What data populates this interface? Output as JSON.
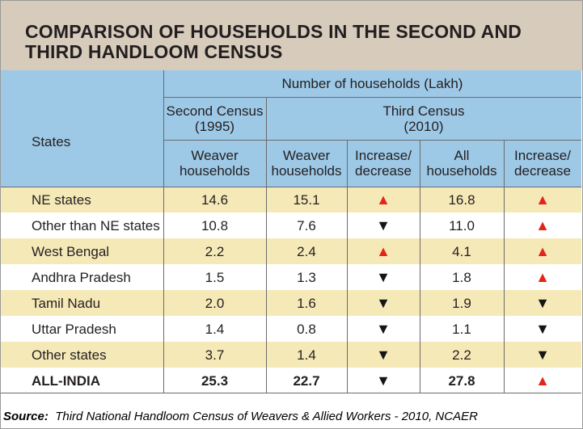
{
  "title_line1": "COMPARISON OF HOUSEHOLDS IN THE SECOND AND",
  "title_line2": "THIRD HANDLOOM CENSUS",
  "header": {
    "group": "Number of households (Lakh)",
    "second_census": "Second Census\n(1995)",
    "third_census": "Third Census\n(2010)",
    "states": "States",
    "col_weaver_1995": "Weaver\nhouseholds",
    "col_weaver_2010": "Weaver\nhouseholds",
    "col_incdec_1": "Increase/\ndecrease",
    "col_all_2010": "All\nhouseholds",
    "col_incdec_2": "Increase/\ndecrease"
  },
  "colors": {
    "header_blue": "#9dc8e6",
    "row_yellow": "#f6e9b8",
    "increase_red": "#e32619",
    "decrease_black": "#151515"
  },
  "chart_data": {
    "type": "table",
    "title": "COMPARISON OF HOUSEHOLDS IN THE SECOND AND THIRD HANDLOOM CENSUS",
    "columns": [
      "States",
      "Second Census (1995) Weaver households",
      "Third Census (2010) Weaver households",
      "Increase/decrease",
      "Third Census (2010) All households",
      "Increase/decrease"
    ],
    "rows": [
      {
        "state": "NE states",
        "weaver_1995": "14.6",
        "weaver_2010": "15.1",
        "change_weaver": "increase",
        "all_2010": "16.8",
        "change_all": "increase",
        "bold": false
      },
      {
        "state": "Other than NE states",
        "weaver_1995": "10.8",
        "weaver_2010": "7.6",
        "change_weaver": "decrease",
        "all_2010": "11.0",
        "change_all": "increase",
        "bold": false
      },
      {
        "state": "West Bengal",
        "weaver_1995": "2.2",
        "weaver_2010": "2.4",
        "change_weaver": "increase",
        "all_2010": "4.1",
        "change_all": "increase",
        "bold": false
      },
      {
        "state": "Andhra Pradesh",
        "weaver_1995": "1.5",
        "weaver_2010": "1.3",
        "change_weaver": "decrease",
        "all_2010": "1.8",
        "change_all": "increase",
        "bold": false
      },
      {
        "state": "Tamil Nadu",
        "weaver_1995": "2.0",
        "weaver_2010": "1.6",
        "change_weaver": "decrease",
        "all_2010": "1.9",
        "change_all": "decrease",
        "bold": false
      },
      {
        "state": "Uttar Pradesh",
        "weaver_1995": "1.4",
        "weaver_2010": "0.8",
        "change_weaver": "decrease",
        "all_2010": "1.1",
        "change_all": "decrease",
        "bold": false
      },
      {
        "state": "Other states",
        "weaver_1995": "3.7",
        "weaver_2010": "1.4",
        "change_weaver": "decrease",
        "all_2010": "2.2",
        "change_all": "decrease",
        "bold": false
      },
      {
        "state": "ALL-INDIA",
        "weaver_1995": "25.3",
        "weaver_2010": "22.7",
        "change_weaver": "decrease",
        "all_2010": "27.8",
        "change_all": "increase",
        "bold": true
      }
    ]
  },
  "source_label": "Source:",
  "source_text": "Third National Handloom Census of Weavers & Allied Workers - 2010, NCAER"
}
